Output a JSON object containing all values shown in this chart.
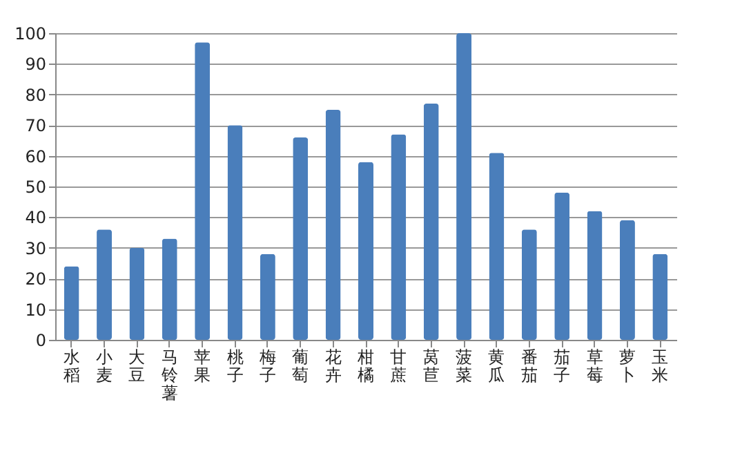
{
  "chart_data": {
    "type": "bar",
    "categories": [
      "水稻",
      "小麦",
      "大豆",
      "马铃薯",
      "苹果",
      "桃子",
      "梅子",
      "葡萄",
      "花卉",
      "柑橘",
      "甘蔗",
      "莴苣",
      "菠菜",
      "黄瓜",
      "番茄",
      "茄子",
      "草莓",
      "萝卜",
      "玉米"
    ],
    "values": [
      24,
      36,
      30,
      33,
      97,
      70,
      28,
      66,
      75,
      58,
      67,
      77,
      100,
      61,
      36,
      48,
      42,
      39,
      28
    ],
    "color": "#4a7ebb",
    "ylim": [
      0,
      100
    ],
    "yticks": [
      0,
      10,
      20,
      30,
      40,
      50,
      60,
      70,
      80,
      90,
      100
    ],
    "grid": "y"
  }
}
